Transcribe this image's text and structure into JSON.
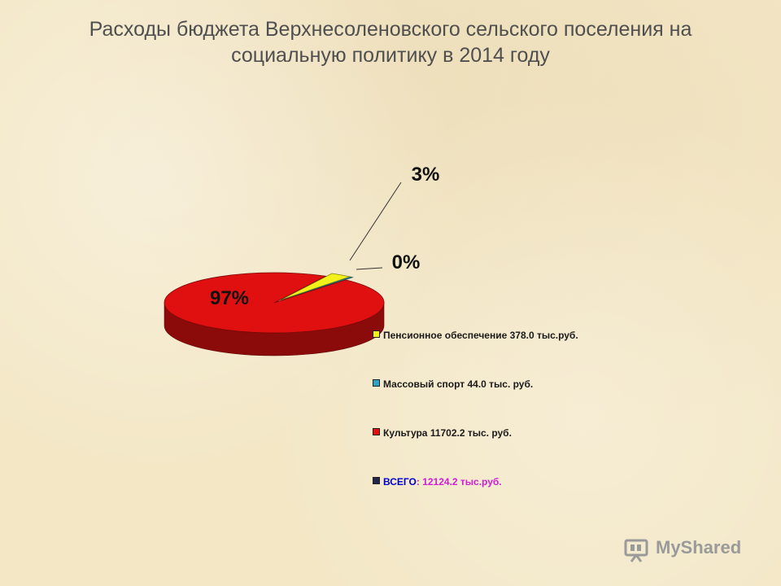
{
  "title": {
    "line1": "Расходы бюджета Верхнесоленовского сельского поселения на",
    "line2": "социальную политику в 2014 году"
  },
  "chart_data": {
    "type": "pie",
    "title": "Расходы бюджета Верхнесоленовского сельского поселения на социальную политику в 2014 году",
    "units": "тыс.руб.",
    "slices": [
      {
        "label": "Пенсионное обеспечение",
        "value": 378.0,
        "percent_label": "3%",
        "color": "#f2f21a"
      },
      {
        "label": "Массовый спорт",
        "value": 44.0,
        "percent_label": "0%",
        "color": "#2fa3c4"
      },
      {
        "label": "Культура",
        "value": 11702.2,
        "percent_label": "97%",
        "color": "#e01010"
      }
    ],
    "total": {
      "label": "ВСЕГО",
      "value": 12124.2,
      "color": "#26264a"
    },
    "legend": [
      {
        "text": "Пенсионное обеспечение 378.0 тыс.руб.",
        "color": "#f2f21a"
      },
      {
        "text": "Массовый спорт 44.0 тыс. руб.",
        "color": "#2fa3c4"
      },
      {
        "text": "Культура 11702.2 тыс. руб.",
        "color": "#e01010"
      },
      {
        "lead": "ВСЕГО",
        "text": ": 12124.2 тыс.руб.",
        "color": "#26264a"
      }
    ],
    "legend_position": "right"
  },
  "watermark": {
    "text": "MyShared"
  }
}
